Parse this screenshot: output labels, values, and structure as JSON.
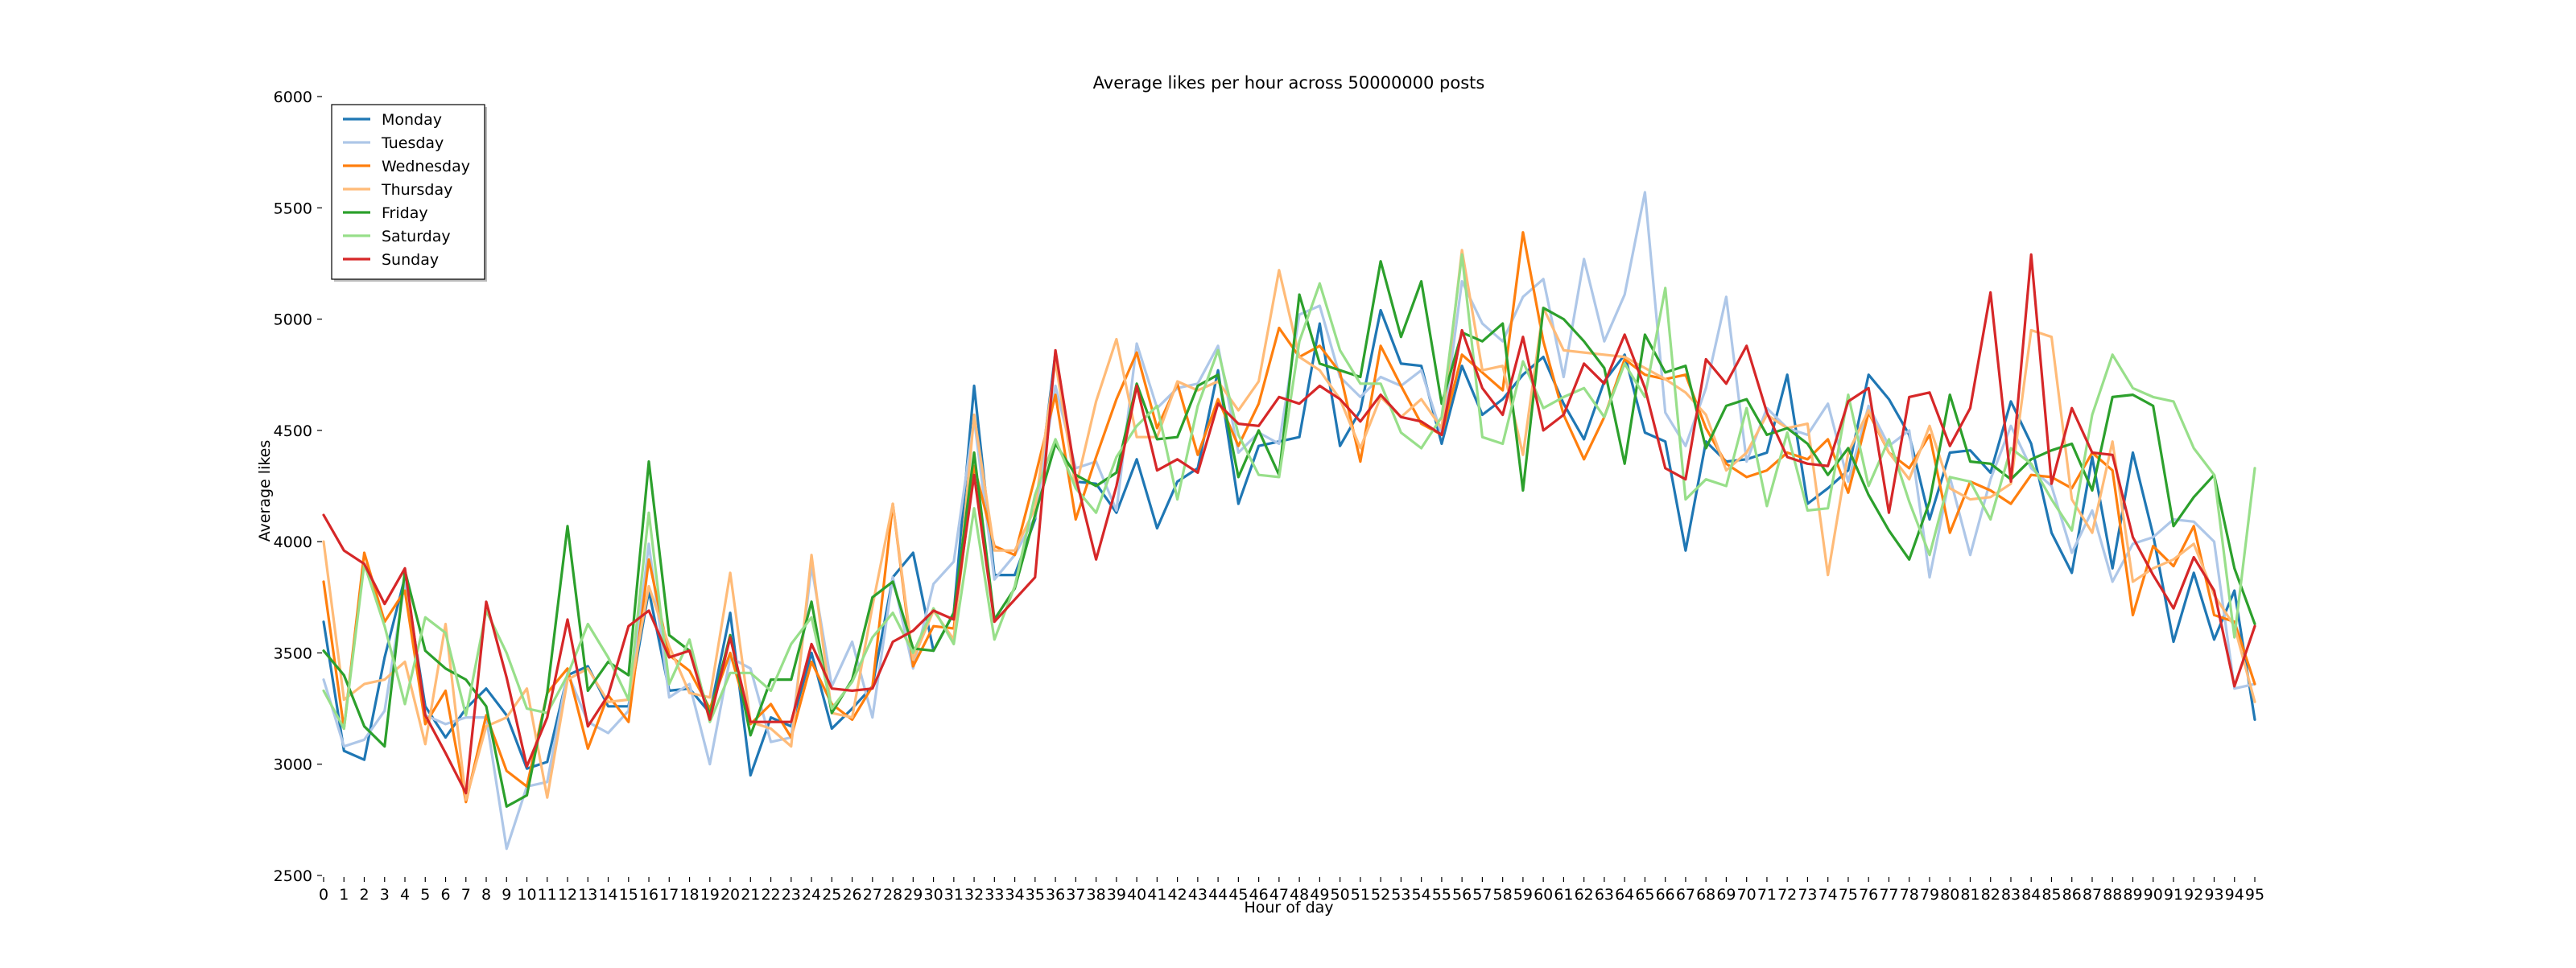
{
  "chart_data": {
    "type": "line",
    "title": "Average likes per hour across 50000000 posts",
    "xlabel": "Hour of day",
    "ylabel": "Average likes",
    "xlim": [
      0,
      95
    ],
    "ylim": [
      2500,
      6000
    ],
    "y_ticks": [
      2500,
      3000,
      3500,
      4000,
      4500,
      5000,
      5500,
      6000
    ],
    "grid": false,
    "legend_position": "top-left",
    "x": [
      0,
      1,
      2,
      3,
      4,
      5,
      6,
      7,
      8,
      9,
      10,
      11,
      12,
      13,
      14,
      15,
      16,
      17,
      18,
      19,
      20,
      21,
      22,
      23,
      24,
      25,
      26,
      27,
      28,
      29,
      30,
      31,
      32,
      33,
      34,
      35,
      36,
      37,
      38,
      39,
      40,
      41,
      42,
      43,
      44,
      45,
      46,
      47,
      48,
      49,
      50,
      51,
      52,
      53,
      54,
      55,
      56,
      57,
      58,
      59,
      60,
      61,
      62,
      63,
      64,
      65,
      66,
      67,
      68,
      69,
      70,
      71,
      72,
      73,
      74,
      75,
      76,
      77,
      78,
      79,
      80,
      81,
      82,
      83,
      84,
      85,
      86,
      87,
      88,
      89,
      90,
      91,
      92,
      93,
      94,
      95
    ],
    "series": [
      {
        "name": "Monday",
        "color": "#1f77b4",
        "values": [
          3640,
          3060,
          3020,
          3480,
          3840,
          3260,
          3120,
          3250,
          3340,
          3220,
          2980,
          3010,
          3400,
          3440,
          3260,
          3260,
          3780,
          3330,
          3340,
          3230,
          3680,
          2950,
          3210,
          3170,
          3500,
          3160,
          3250,
          3350,
          3840,
          3950,
          3510,
          3680,
          4700,
          3850,
          3850,
          4100,
          4850,
          4270,
          4260,
          4130,
          4370,
          4060,
          4270,
          4330,
          4770,
          4170,
          4430,
          4450,
          4470,
          4980,
          4430,
          4590,
          5040,
          4800,
          4790,
          4440,
          4790,
          4570,
          4640,
          4750,
          4830,
          4620,
          4460,
          4720,
          4840,
          4490,
          4450,
          3960,
          4450,
          4360,
          4370,
          4400,
          4750,
          4170,
          4240,
          4320,
          4750,
          4640,
          4480,
          4100,
          4400,
          4410,
          4310,
          4630,
          4440,
          4040,
          3860,
          4380,
          3880,
          4400,
          4030,
          3550,
          3860,
          3560,
          3780,
          3200
        ]
      },
      {
        "name": "Tuesday",
        "color": "#aec7e8",
        "values": [
          3380,
          3080,
          3110,
          3240,
          3820,
          3220,
          3180,
          3210,
          3210,
          2620,
          2900,
          2920,
          3410,
          3190,
          3140,
          3240,
          3990,
          3300,
          3360,
          3000,
          3480,
          3430,
          3100,
          3120,
          3890,
          3350,
          3550,
          3210,
          3840,
          3430,
          3810,
          3910,
          4550,
          3830,
          3940,
          4110,
          4700,
          4330,
          4360,
          4140,
          4890,
          4600,
          4690,
          4710,
          4880,
          4400,
          4490,
          4440,
          5020,
          5060,
          4740,
          4650,
          4740,
          4700,
          4770,
          4480,
          5170,
          4980,
          4900,
          5100,
          5180,
          4740,
          5270,
          4900,
          5110,
          5570,
          4580,
          4430,
          4690,
          5100,
          4360,
          4600,
          4510,
          4480,
          4620,
          4270,
          4610,
          4430,
          4500,
          3840,
          4290,
          3940,
          4280,
          4520,
          4330,
          4250,
          3950,
          4140,
          3820,
          3990,
          4020,
          4100,
          4090,
          4000,
          3340,
          3360
        ]
      },
      {
        "name": "Wednesday",
        "color": "#ff7f0e",
        "values": [
          3820,
          3160,
          3950,
          3640,
          3780,
          3180,
          3330,
          2830,
          3220,
          2970,
          2900,
          3320,
          3430,
          3070,
          3310,
          3190,
          3920,
          3490,
          3420,
          3250,
          3500,
          3180,
          3270,
          3120,
          3460,
          3270,
          3200,
          3350,
          4170,
          3440,
          3620,
          3610,
          4340,
          3980,
          3940,
          4290,
          4660,
          4100,
          4380,
          4640,
          4850,
          4510,
          4710,
          4390,
          4640,
          4430,
          4620,
          4960,
          4830,
          4880,
          4760,
          4360,
          4880,
          4700,
          4530,
          4480,
          4840,
          4760,
          4680,
          5390,
          4900,
          4570,
          4370,
          4560,
          4820,
          4750,
          4730,
          4750,
          4510,
          4350,
          4290,
          4320,
          4400,
          4370,
          4460,
          4220,
          4580,
          4400,
          4330,
          4480,
          4040,
          4270,
          4230,
          4170,
          4300,
          4290,
          4240,
          4400,
          4320,
          3670,
          3980,
          3890,
          4070,
          3670,
          3640,
          3360
        ]
      },
      {
        "name": "Thursday",
        "color": "#ffbb78",
        "values": [
          4000,
          3290,
          3360,
          3380,
          3460,
          3090,
          3630,
          2840,
          3170,
          3210,
          3340,
          2850,
          3380,
          3430,
          3280,
          3290,
          3800,
          3530,
          3320,
          3300,
          3860,
          3190,
          3160,
          3080,
          3940,
          3230,
          3210,
          3710,
          4170,
          3470,
          3690,
          3560,
          4570,
          3960,
          3960,
          4150,
          4810,
          4240,
          4630,
          4910,
          4470,
          4470,
          4720,
          4680,
          4720,
          4590,
          4720,
          5220,
          4830,
          4770,
          4640,
          4420,
          4650,
          4560,
          4640,
          4510,
          5310,
          4770,
          4790,
          4390,
          5050,
          4860,
          4850,
          4840,
          4830,
          4780,
          4730,
          4670,
          4570,
          4320,
          4400,
          4570,
          4510,
          4530,
          3850,
          4400,
          4590,
          4400,
          4280,
          4520,
          4240,
          4190,
          4200,
          4260,
          4950,
          4920,
          4190,
          4040,
          4450,
          3820,
          3880,
          3920,
          3990,
          3760,
          3620,
          3280
        ]
      },
      {
        "name": "Friday",
        "color": "#2ca02c",
        "values": [
          3510,
          3400,
          3170,
          3080,
          3870,
          3510,
          3430,
          3380,
          3260,
          2810,
          2860,
          3320,
          4070,
          3330,
          3460,
          3400,
          4360,
          3580,
          3510,
          3220,
          3580,
          3130,
          3380,
          3380,
          3730,
          3230,
          3380,
          3750,
          3820,
          3520,
          3510,
          3680,
          4400,
          3650,
          3790,
          4120,
          4440,
          4300,
          4250,
          4310,
          4710,
          4460,
          4470,
          4700,
          4750,
          4290,
          4500,
          4300,
          5110,
          4800,
          4770,
          4740,
          5260,
          4920,
          5170,
          4620,
          4940,
          4900,
          4980,
          4230,
          5050,
          5000,
          4900,
          4780,
          4350,
          4930,
          4760,
          4790,
          4420,
          4610,
          4640,
          4480,
          4510,
          4440,
          4300,
          4420,
          4210,
          4050,
          3920,
          4180,
          4660,
          4360,
          4350,
          4280,
          4370,
          4410,
          4440,
          4230,
          4650,
          4660,
          4610,
          4070,
          4200,
          4300,
          3880,
          3630
        ]
      },
      {
        "name": "Saturday",
        "color": "#98df8a",
        "values": [
          3330,
          3160,
          3900,
          3620,
          3270,
          3660,
          3590,
          3220,
          3690,
          3500,
          3250,
          3230,
          3400,
          3630,
          3480,
          3290,
          4130,
          3360,
          3560,
          3190,
          3410,
          3410,
          3330,
          3540,
          3660,
          3250,
          3370,
          3570,
          3680,
          3500,
          3700,
          3540,
          4150,
          3560,
          3800,
          4210,
          4460,
          4240,
          4130,
          4380,
          4520,
          4610,
          4190,
          4610,
          4860,
          4480,
          4300,
          4290,
          4900,
          5160,
          4860,
          4710,
          4710,
          4490,
          4420,
          4560,
          5290,
          4470,
          4440,
          4810,
          4600,
          4650,
          4690,
          4560,
          4800,
          4650,
          5140,
          4190,
          4280,
          4250,
          4600,
          4160,
          4490,
          4140,
          4150,
          4660,
          4250,
          4460,
          4180,
          3940,
          4290,
          4270,
          4100,
          4420,
          4350,
          4190,
          4050,
          4570,
          4840,
          4690,
          4650,
          4630,
          4420,
          4300,
          3570,
          4330
        ]
      },
      {
        "name": "Sunday",
        "color": "#d62728",
        "values": [
          4120,
          3960,
          3900,
          3720,
          3880,
          3220,
          3050,
          2870,
          3730,
          3390,
          2990,
          3210,
          3650,
          3170,
          3310,
          3620,
          3690,
          3480,
          3510,
          3200,
          3570,
          3190,
          3190,
          3190,
          3540,
          3340,
          3330,
          3340,
          3550,
          3600,
          3690,
          3650,
          4300,
          3640,
          3740,
          3840,
          4860,
          4290,
          3920,
          4250,
          4700,
          4320,
          4370,
          4310,
          4620,
          4530,
          4520,
          4650,
          4620,
          4700,
          4640,
          4540,
          4660,
          4560,
          4540,
          4480,
          4950,
          4690,
          4570,
          4920,
          4500,
          4570,
          4800,
          4710,
          4930,
          4690,
          4330,
          4280,
          4820,
          4710,
          4880,
          4580,
          4380,
          4350,
          4340,
          4630,
          4690,
          4130,
          4650,
          4670,
          4430,
          4600,
          5120,
          4270,
          5290,
          4260,
          4600,
          4400,
          4390,
          4020,
          3850,
          3700,
          3930,
          3780,
          3350,
          3620
        ]
      }
    ]
  }
}
